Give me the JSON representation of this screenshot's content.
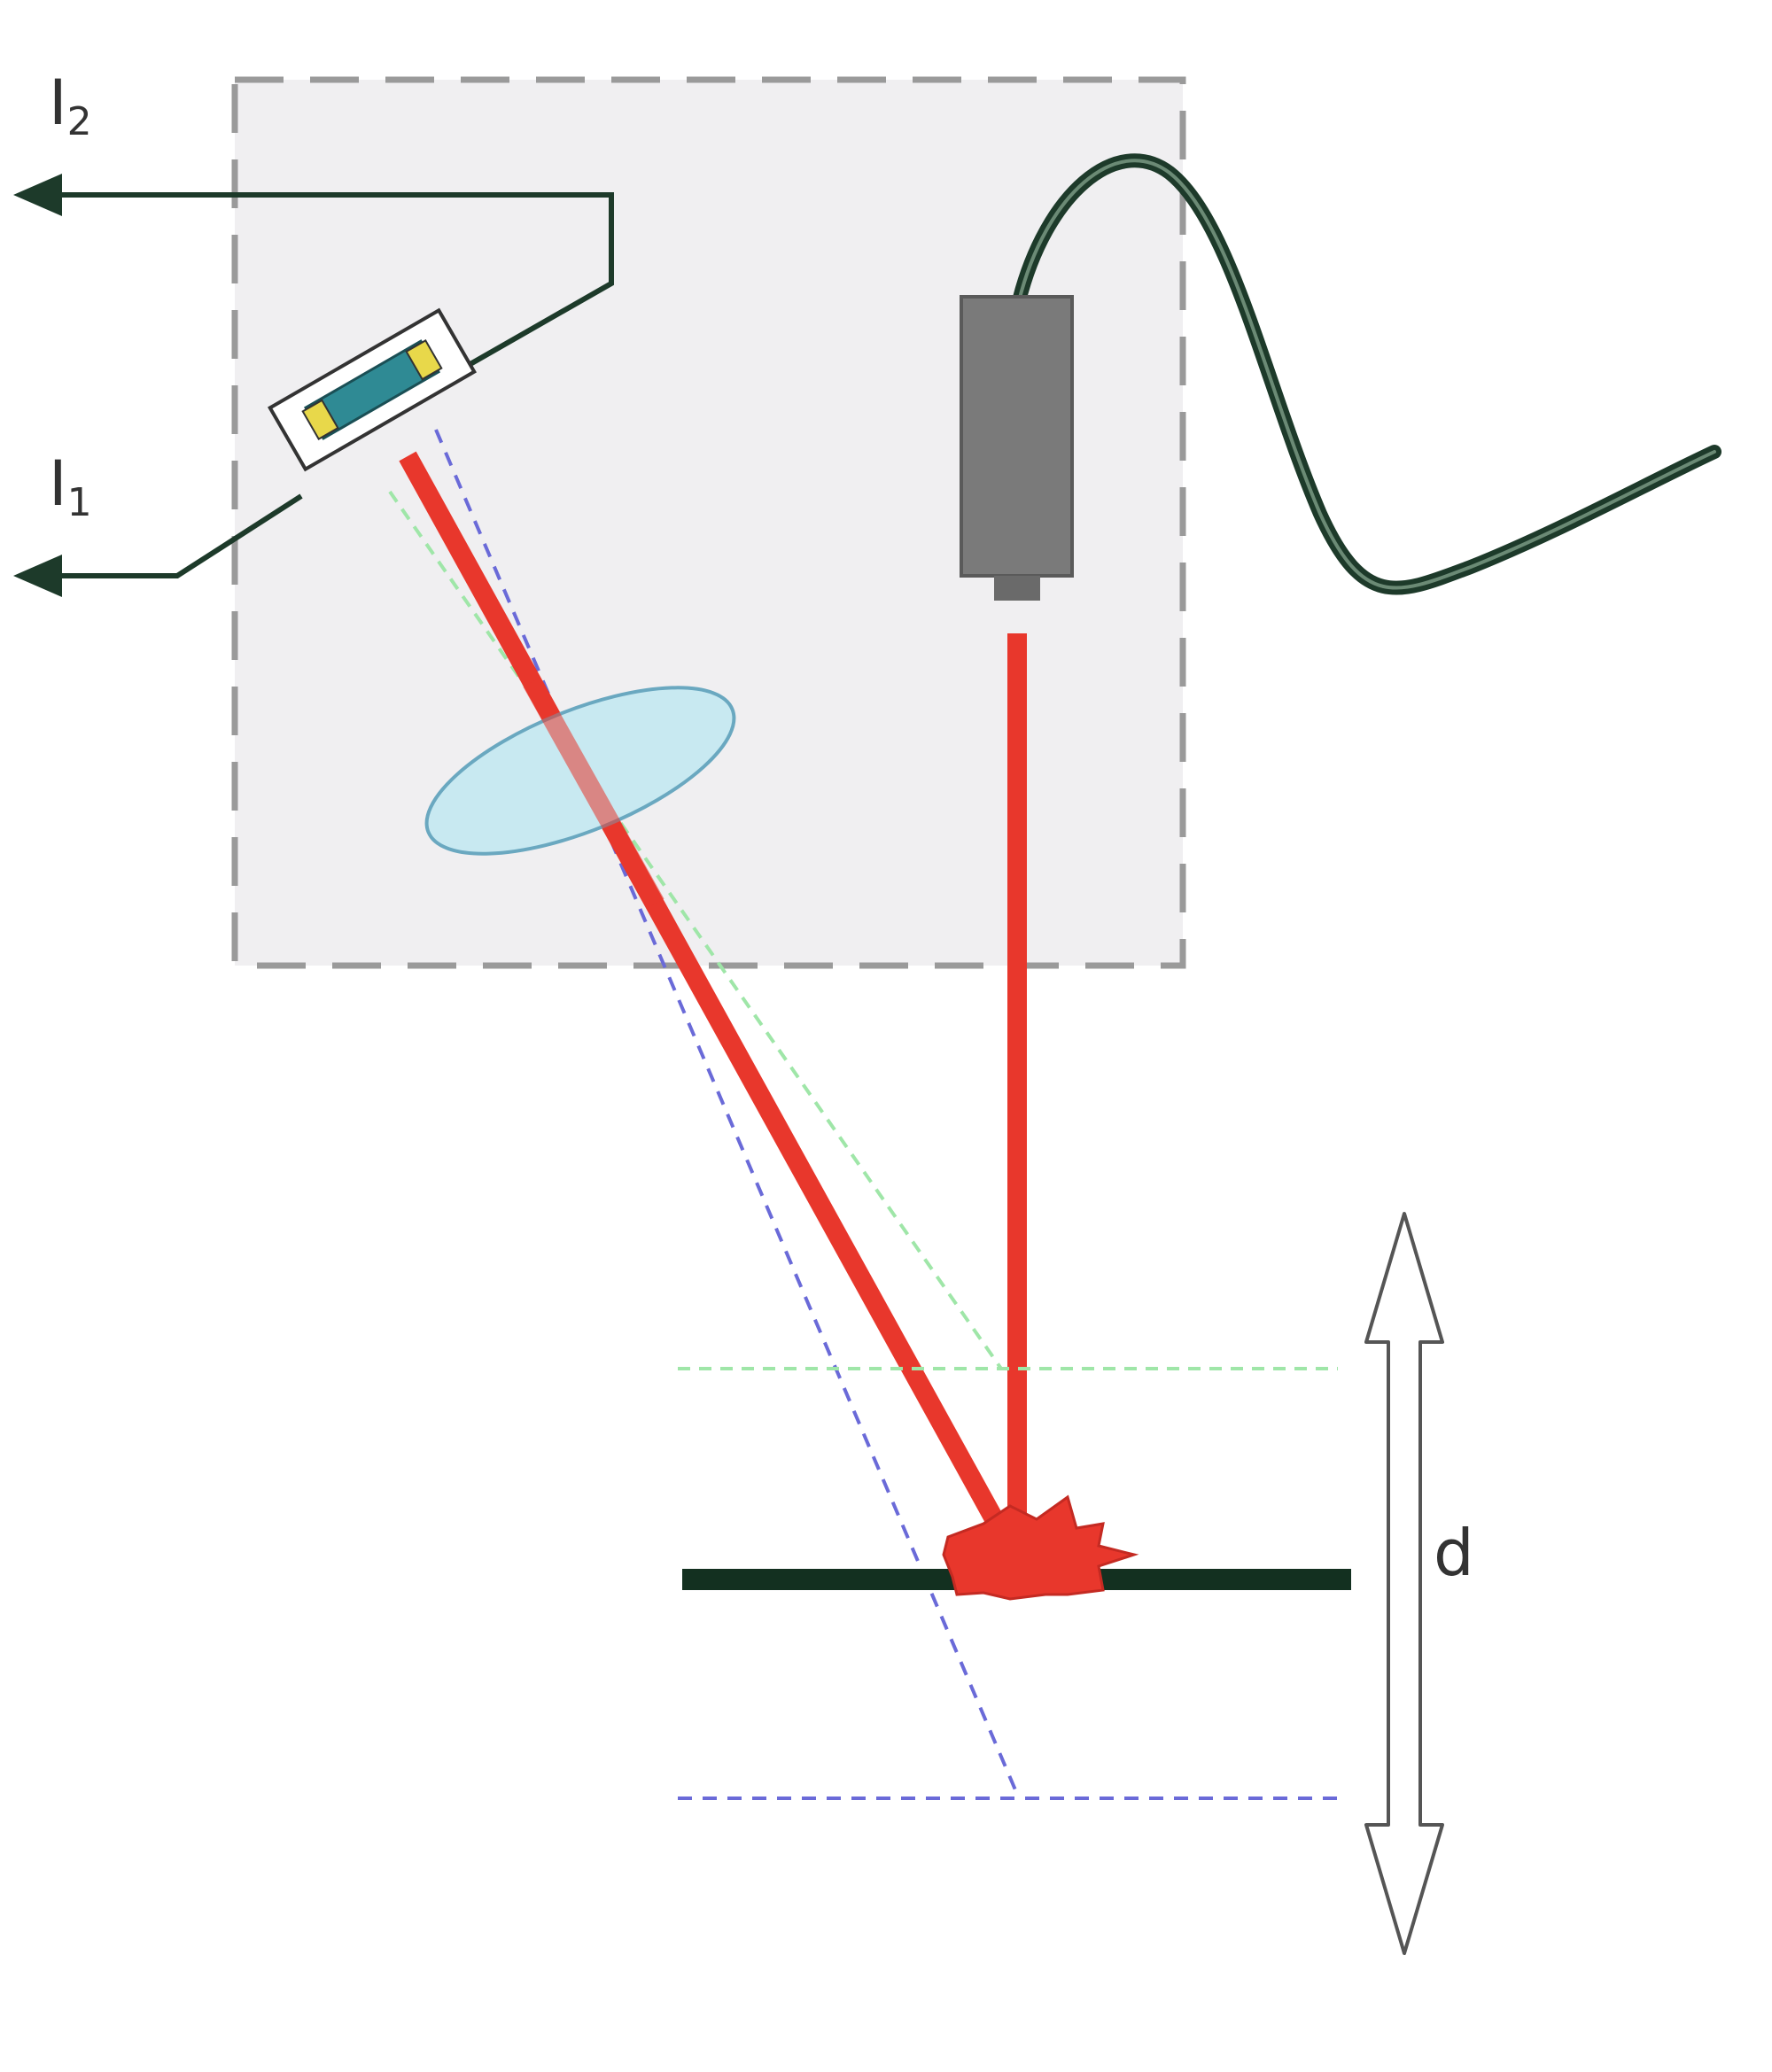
{
  "labels": {
    "i2": "I",
    "i2_sub": "2",
    "i1": "I",
    "i1_sub": "1",
    "distance": "d"
  },
  "colors": {
    "housing_fill": "#f0eff1",
    "housing_border": "#9a9a9a",
    "laser_beam": "#e8372c",
    "lens": "#c8e9f1",
    "lens_edge": "#6aa8c0",
    "sensor_chip": "#2f8a94",
    "sensor_pad": "#e8d84a",
    "wire": "#1d3a2a",
    "surface": "#133020",
    "near_limit": "#9fe6a8",
    "far_limit": "#6a6ad8",
    "laser_body": "#7a7a7a"
  },
  "icons": {
    "laser_source": "laser-diode-icon",
    "detector": "position-sensitive-detector-icon",
    "lens": "lens-icon",
    "spot": "laser-spot-icon"
  }
}
